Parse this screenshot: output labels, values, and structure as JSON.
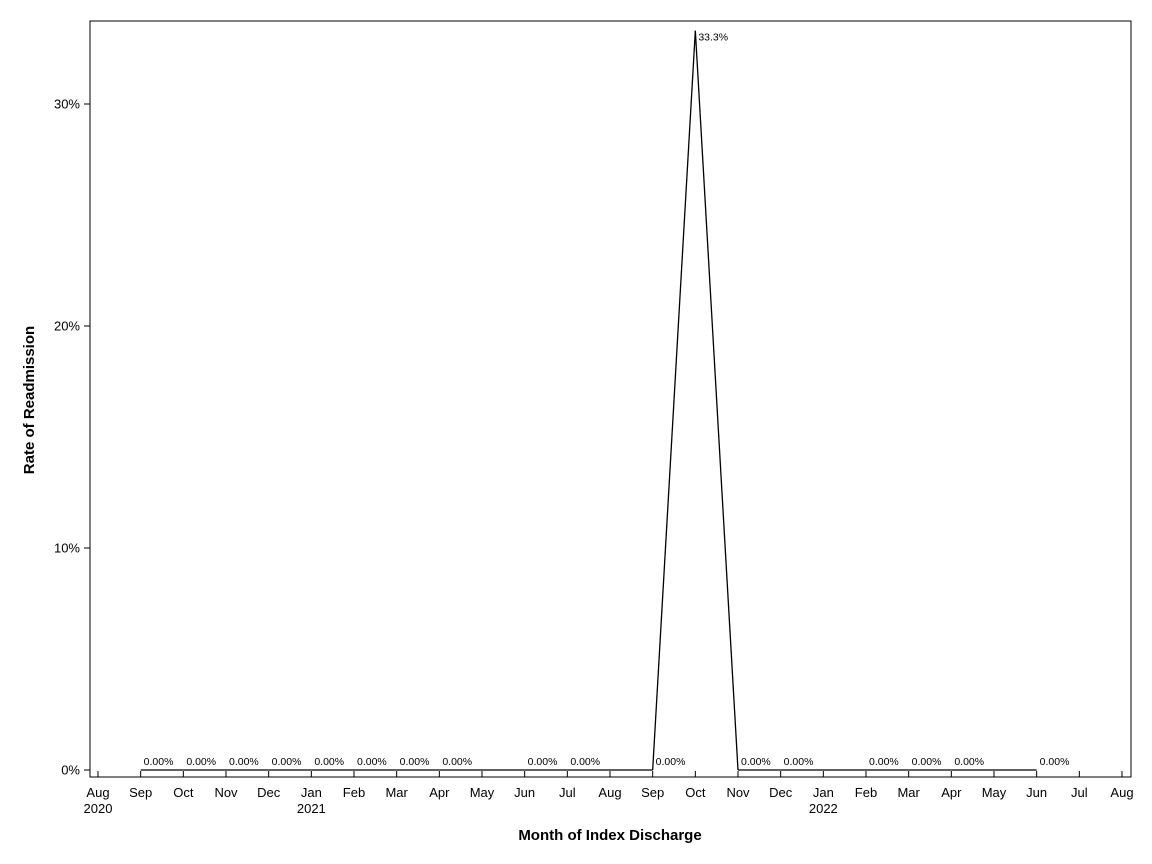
{
  "chart_data": {
    "type": "line",
    "xlabel": "Month of Index Discharge",
    "ylabel": "Rate of Readmission",
    "x_axis": {
      "range": [
        "2020-08",
        "2022-08"
      ],
      "ticks": [
        {
          "date": "2020-08",
          "label": "Aug",
          "year": "2020"
        },
        {
          "date": "2020-09",
          "label": "Sep",
          "year": ""
        },
        {
          "date": "2020-10",
          "label": "Oct",
          "year": ""
        },
        {
          "date": "2020-11",
          "label": "Nov",
          "year": ""
        },
        {
          "date": "2020-12",
          "label": "Dec",
          "year": ""
        },
        {
          "date": "2021-01",
          "label": "Jan",
          "year": "2021"
        },
        {
          "date": "2021-02",
          "label": "Feb",
          "year": ""
        },
        {
          "date": "2021-03",
          "label": "Mar",
          "year": ""
        },
        {
          "date": "2021-04",
          "label": "Apr",
          "year": ""
        },
        {
          "date": "2021-05",
          "label": "May",
          "year": ""
        },
        {
          "date": "2021-06",
          "label": "Jun",
          "year": ""
        },
        {
          "date": "2021-07",
          "label": "Jul",
          "year": ""
        },
        {
          "date": "2021-08",
          "label": "Aug",
          "year": ""
        },
        {
          "date": "2021-09",
          "label": "Sep",
          "year": ""
        },
        {
          "date": "2021-10",
          "label": "Oct",
          "year": ""
        },
        {
          "date": "2021-11",
          "label": "Nov",
          "year": ""
        },
        {
          "date": "2021-12",
          "label": "Dec",
          "year": ""
        },
        {
          "date": "2022-01",
          "label": "Jan",
          "year": "2022"
        },
        {
          "date": "2022-02",
          "label": "Feb",
          "year": ""
        },
        {
          "date": "2022-03",
          "label": "Mar",
          "year": ""
        },
        {
          "date": "2022-04",
          "label": "Apr",
          "year": ""
        },
        {
          "date": "2022-05",
          "label": "May",
          "year": ""
        },
        {
          "date": "2022-06",
          "label": "Jun",
          "year": ""
        },
        {
          "date": "2022-07",
          "label": "Jul",
          "year": ""
        },
        {
          "date": "2022-08",
          "label": "Aug",
          "year": ""
        }
      ]
    },
    "y_axis": {
      "ylim": [
        0,
        0.333
      ],
      "ticks": [
        {
          "value": 0.0,
          "label": "0%"
        },
        {
          "value": 0.1,
          "label": "10%"
        },
        {
          "value": 0.2,
          "label": "20%"
        },
        {
          "value": 0.3,
          "label": "30%"
        }
      ]
    },
    "grid": false,
    "series": [
      {
        "color": "#000000",
        "points": [
          {
            "x": "2020-09",
            "y": 0.0,
            "label": "0.00%"
          },
          {
            "x": "2020-10",
            "y": 0.0,
            "label": "0.00%"
          },
          {
            "x": "2020-11",
            "y": 0.0,
            "label": "0.00%"
          },
          {
            "x": "2020-12",
            "y": 0.0,
            "label": "0.00%"
          },
          {
            "x": "2021-01",
            "y": 0.0,
            "label": "0.00%"
          },
          {
            "x": "2021-02",
            "y": 0.0,
            "label": "0.00%"
          },
          {
            "x": "2021-03",
            "y": 0.0,
            "label": "0.00%"
          },
          {
            "x": "2021-04",
            "y": 0.0,
            "label": "0.00%"
          },
          {
            "x": "2021-06",
            "y": 0.0,
            "label": "0.00%"
          },
          {
            "x": "2021-07",
            "y": 0.0,
            "label": "0.00%"
          },
          {
            "x": "2021-09",
            "y": 0.0,
            "label": "0.00%"
          },
          {
            "x": "2021-10",
            "y": 0.333,
            "label": "33.3%"
          },
          {
            "x": "2021-11",
            "y": 0.0,
            "label": "0.00%"
          },
          {
            "x": "2021-12",
            "y": 0.0,
            "label": "0.00%"
          },
          {
            "x": "2022-02",
            "y": 0.0,
            "label": "0.00%"
          },
          {
            "x": "2022-03",
            "y": 0.0,
            "label": "0.00%"
          },
          {
            "x": "2022-04",
            "y": 0.0,
            "label": "0.00%"
          },
          {
            "x": "2022-06",
            "y": 0.0,
            "label": "0.00%"
          }
        ]
      }
    ]
  }
}
